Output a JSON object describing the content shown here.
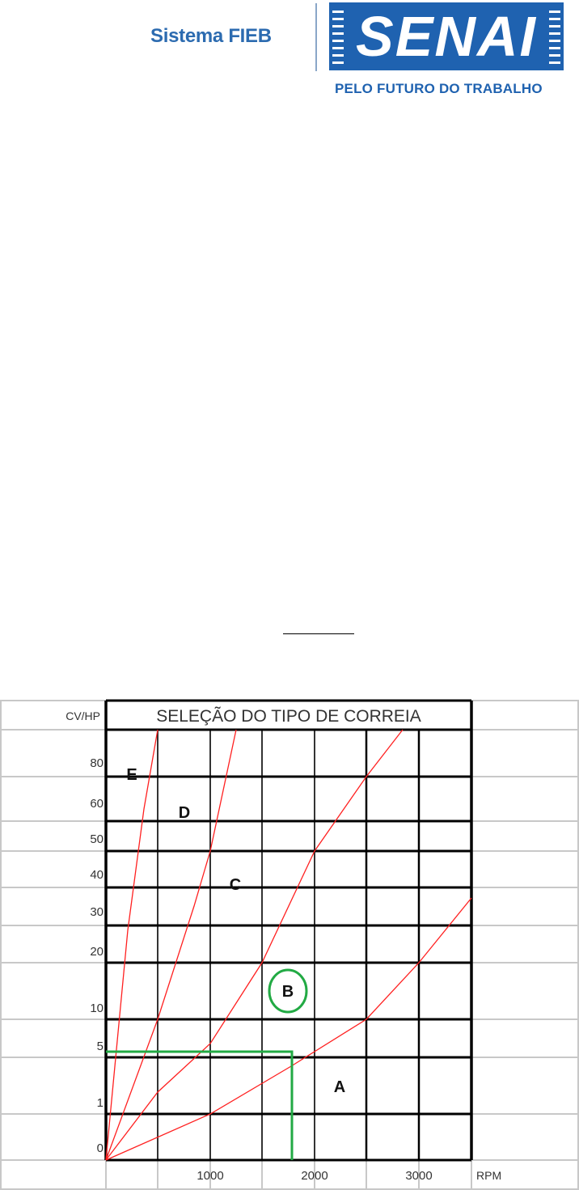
{
  "header": {
    "logo_left_text": "Sistema FIEB",
    "logo_brand_text": "SENAI",
    "logo_tagline": "PELO FUTURO DO TRABALHO",
    "brand_color": "#1f62b0"
  },
  "chart_data": {
    "type": "line",
    "title": "SELEÇÃO DO TIPO DE CORREIA",
    "ylabel": "CV/HP",
    "xlabel": "RPM",
    "y_tick_labels": [
      "80",
      "60",
      "50",
      "40",
      "30",
      "20",
      "10",
      "5",
      "1",
      "0"
    ],
    "x_tick_labels": [
      "1000",
      "2000",
      "3000"
    ],
    "regions": [
      "E",
      "D",
      "C",
      "B",
      "A"
    ],
    "highlighted_region": "B",
    "selection": {
      "rpm": 1800,
      "cv_hp": 5
    },
    "grid": true,
    "colors": {
      "boundary_lines": "#ff2020",
      "selection": "#22aa44",
      "grid": "#000000"
    }
  }
}
